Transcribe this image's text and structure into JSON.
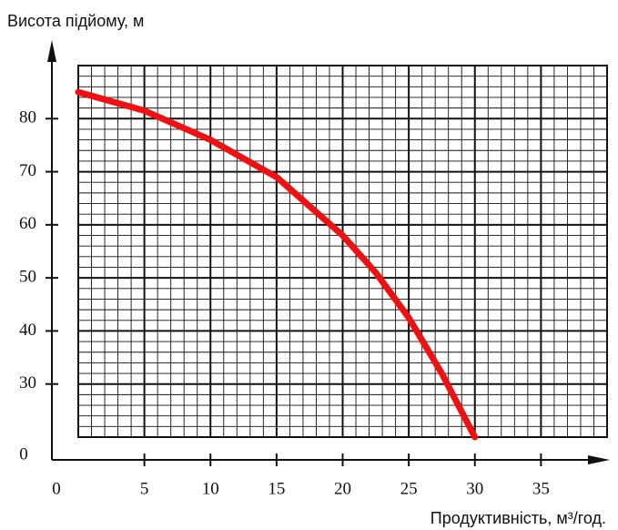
{
  "chart_data": {
    "type": "line",
    "y_label": "Висота підйому, м",
    "x_label": "Продуктивність, м³/год.",
    "origin_label": "0",
    "x": [
      0,
      5,
      10,
      15,
      20,
      22.5,
      25,
      27.5,
      30
    ],
    "series": [
      {
        "name": null,
        "color": "#ee1111",
        "values": [
          85,
          81.5,
          76,
          69,
          58,
          51,
          42.5,
          32,
          20
        ]
      }
    ],
    "xlim": [
      0,
      40
    ],
    "xticks": [
      5,
      10,
      15,
      20,
      25,
      30,
      35
    ],
    "ylim": [
      20,
      90
    ],
    "yticks": [
      30,
      40,
      50,
      60,
      70,
      80
    ],
    "grid": true,
    "minor_grid": {
      "x": 1,
      "y": 2
    },
    "y_axis_break": true
  }
}
